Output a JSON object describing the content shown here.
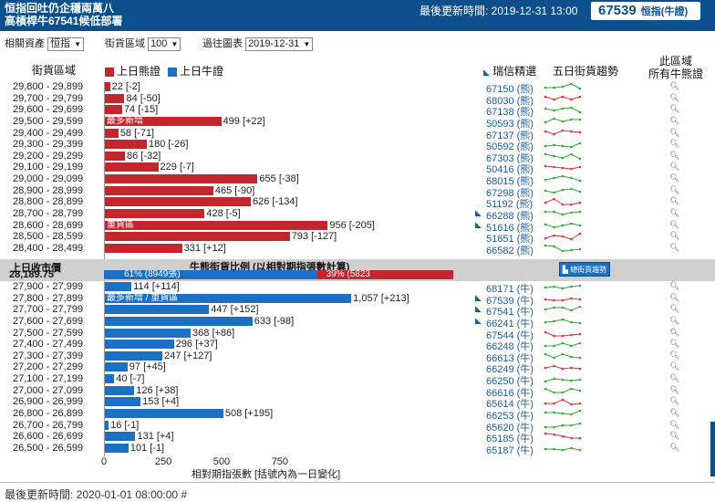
{
  "header": {
    "title_line1": "恒指回吐仍企穩兩萬八",
    "title_line2": "高槓桿牛67541候低部署",
    "updated": "最後更新時間: 2019-12-31 13:00",
    "code": "67539",
    "code_sub": "恒指(牛證)"
  },
  "controls": {
    "asset_label": "相關資產",
    "asset_value": "恒指",
    "zone_label": "街貨區域",
    "zone_value": "100",
    "chart_label": "過往圖表",
    "chart_value": "2019-12-31"
  },
  "columns": {
    "zone": "街貨區域",
    "bear_legend": "上日熊證",
    "bull_legend": "上日牛證",
    "pick": "瑞信精選",
    "trend": "五日街貨趨勢",
    "all_line1": "此區域",
    "all_line2": "所有牛熊證"
  },
  "colors": {
    "bear": "#c4262e",
    "bull": "#1b6fc4",
    "header": "#0d4f8c"
  },
  "bear_rows": [
    {
      "range": "29,800 - 29,899",
      "val": 22,
      "label": "22 [-2]",
      "code": "67150 (熊)",
      "note": "",
      "flag": false
    },
    {
      "range": "29,700 - 29,799",
      "val": 84,
      "label": "84 [-50]",
      "code": "68030 (熊)",
      "note": "",
      "flag": false
    },
    {
      "range": "29,600 - 29,699",
      "val": 74,
      "label": "74 [-15]",
      "code": "67138 (熊)",
      "note": "",
      "flag": false
    },
    {
      "range": "29,500 - 29,599",
      "val": 499,
      "label": "499 [+22]",
      "code": "50593 (熊)",
      "note": "最多新增",
      "flag": false
    },
    {
      "range": "29,400 - 29,499",
      "val": 58,
      "label": "58 [-71]",
      "code": "67137 (熊)",
      "note": "",
      "flag": false
    },
    {
      "range": "29,300 - 29,399",
      "val": 180,
      "label": "180 [-26]",
      "code": "50592 (熊)",
      "note": "",
      "flag": false
    },
    {
      "range": "29,200 - 29,299",
      "val": 86,
      "label": "86 [-32]",
      "code": "67303 (熊)",
      "note": "",
      "flag": false
    },
    {
      "range": "29,100 - 29,199",
      "val": 229,
      "label": "229 [-7]",
      "code": "50416 (熊)",
      "note": "",
      "flag": false
    },
    {
      "range": "29,000 - 29,099",
      "val": 655,
      "label": "655 [-38]",
      "code": "68015 (熊)",
      "note": "",
      "flag": false
    },
    {
      "range": "28,900 - 28,999",
      "val": 465,
      "label": "465 [-90]",
      "code": "67298 (熊)",
      "note": "",
      "flag": false
    },
    {
      "range": "28,800 - 28,899",
      "val": 626,
      "label": "626 [-134]",
      "code": "51192 (熊)",
      "note": "",
      "flag": false
    },
    {
      "range": "28,700 - 28,799",
      "val": 428,
      "label": "428 [-5]",
      "code": "66288 (熊)",
      "note": "",
      "flag": true
    },
    {
      "range": "28,600 - 28,699",
      "val": 956,
      "label": "956 [-205]",
      "code": "51616 (熊)",
      "note": "重貨區",
      "flag": true
    },
    {
      "range": "28,500 - 28,599",
      "val": 793,
      "label": "793 [-127]",
      "code": "51651 (熊)",
      "note": "",
      "flag": false
    },
    {
      "range": "28,400 - 28,499",
      "val": 331,
      "label": "331 [+12]",
      "code": "66582 (熊)",
      "note": "",
      "flag": false
    }
  ],
  "middle": {
    "close_label": "上日收市價",
    "close_value": "28,189.75",
    "ratio_title": "牛熊街貨比例 (以相對期指張數計算)",
    "bull_pct": "61% (8949張)",
    "bear_pct": "39% (5823",
    "bull_share": 0.61,
    "btn": "總街貨趨勢"
  },
  "bull_rows": [
    {
      "range": "27,900 - 27,999",
      "val": 114,
      "label": "114 [+114]",
      "code": "68171 (牛)",
      "note": "",
      "flag": false
    },
    {
      "range": "27,800 - 27,899",
      "val": 1057,
      "label": "1,057 [+213]",
      "code": "67539 (牛)",
      "note": "最多新增 / 重貨區",
      "flag": true
    },
    {
      "range": "27,700 - 27,799",
      "val": 447,
      "label": "447 [+152]",
      "code": "67541 (牛)",
      "note": "",
      "flag": true
    },
    {
      "range": "27,600 - 27,699",
      "val": 633,
      "label": "633 [-98]",
      "code": "66241 (牛)",
      "note": "",
      "flag": true
    },
    {
      "range": "27,500 - 27,599",
      "val": 368,
      "label": "368 [+86]",
      "code": "67544 (牛)",
      "note": "",
      "flag": false
    },
    {
      "range": "27,400 - 27,499",
      "val": 296,
      "label": "296 [+37]",
      "code": "66248 (牛)",
      "note": "",
      "flag": false
    },
    {
      "range": "27,300 - 27,399",
      "val": 247,
      "label": "247 [+127]",
      "code": "66613 (牛)",
      "note": "",
      "flag": false
    },
    {
      "range": "27,200 - 27,299",
      "val": 97,
      "label": "97 [+45]",
      "code": "66249 (牛)",
      "note": "",
      "flag": false
    },
    {
      "range": "27,100 - 27,199",
      "val": 40,
      "label": "40 [-7]",
      "code": "66250 (牛)",
      "note": "",
      "flag": false
    },
    {
      "range": "27,000 - 27,099",
      "val": 126,
      "label": "126 [+38]",
      "code": "66616 (牛)",
      "note": "",
      "flag": false
    },
    {
      "range": "26,900 - 26,999",
      "val": 153,
      "label": "153 [+4]",
      "code": "65614 (牛)",
      "note": "",
      "flag": false
    },
    {
      "range": "26,800 - 26,899",
      "val": 508,
      "label": "508 [+195]",
      "code": "66253 (牛)",
      "note": "",
      "flag": false
    },
    {
      "range": "26,700 - 26,799",
      "val": 16,
      "label": "16 [-1]",
      "code": "65620 (牛)",
      "note": "",
      "flag": false
    },
    {
      "range": "26,600 - 26,699",
      "val": 131,
      "label": "131 [+4]",
      "code": "65185 (牛)",
      "note": "",
      "flag": false
    },
    {
      "range": "26,500 - 26,599",
      "val": 101,
      "label": "101 [-1]",
      "code": "65187 (牛)",
      "note": "",
      "flag": false
    }
  ],
  "axis": {
    "ticks": [
      "0",
      "250",
      "500",
      "750"
    ],
    "tick_values": [
      0,
      250,
      500,
      750
    ],
    "caption": "相對期指張數 [括號內為一日變化]"
  },
  "footer": {
    "text": "最後更新時間: 2020-01-01 08:00:00 #"
  }
}
